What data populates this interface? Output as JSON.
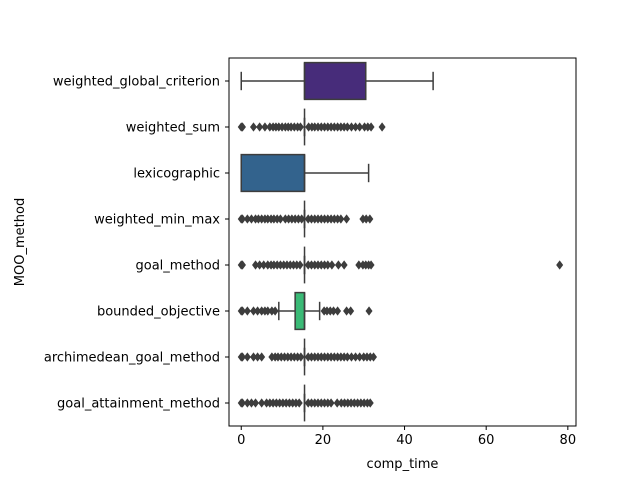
{
  "chart_data": {
    "type": "boxplot",
    "orientation": "horizontal",
    "title": "",
    "xlabel": "comp_time",
    "ylabel": "MOO_method",
    "xlim": [
      -3,
      82
    ],
    "xticks": [
      0,
      20,
      40,
      60,
      80
    ],
    "grid": false,
    "legend": "none",
    "categories": [
      "weighted_global_criterion",
      "weighted_sum",
      "lexicographic",
      "weighted_min_max",
      "goal_method",
      "bounded_objective",
      "archimedean_goal_method",
      "goal_attainment_method"
    ],
    "series": [
      {
        "category": "weighted_global_criterion",
        "color": "#472c7a",
        "whisker_low": 0,
        "q1": 15.5,
        "median": 15.5,
        "q3": 30.5,
        "whisker_high": 47,
        "outliers": []
      },
      {
        "category": "weighted_sum",
        "color": "#3b528b",
        "whisker_low": 15.5,
        "q1": 15.5,
        "median": 15.5,
        "q3": 15.5,
        "whisker_high": 15.5,
        "outliers": [
          0,
          0.3,
          3,
          4.5,
          5.8,
          7,
          7.8,
          8.5,
          9.2,
          10,
          10.8,
          11.5,
          12.2,
          13,
          13.8,
          14.5,
          16.5,
          17.3,
          18,
          18.8,
          19.6,
          20.4,
          21.2,
          22,
          22.8,
          23.6,
          24.4,
          25.2,
          26,
          27,
          28,
          29,
          30.2,
          31,
          31.8,
          34.5
        ]
      },
      {
        "category": "lexicographic",
        "color": "#33638d",
        "whisker_low": 0,
        "q1": 0,
        "median": 15.5,
        "q3": 15.5,
        "whisker_high": 31.2,
        "outliers": []
      },
      {
        "category": "weighted_min_max",
        "color": "#2c728e",
        "whisker_low": 15.5,
        "q1": 15.5,
        "median": 15.5,
        "q3": 15.5,
        "whisker_high": 15.5,
        "outliers": [
          0,
          0.3,
          1.5,
          2.5,
          3.5,
          4.2,
          5,
          5.8,
          6.5,
          7.3,
          8,
          8.8,
          9.6,
          10.8,
          11.6,
          12.4,
          13.2,
          14,
          14.8,
          16.4,
          17.2,
          18,
          18.8,
          19.6,
          20.4,
          21.2,
          22,
          22.8,
          23.6,
          24.4,
          25.8,
          29.8,
          30.6,
          31.5
        ]
      },
      {
        "category": "goal_method",
        "color": "#21908d",
        "whisker_low": 15.5,
        "q1": 15.5,
        "median": 15.5,
        "q3": 15.5,
        "whisker_high": 15.5,
        "outliers": [
          0,
          0.3,
          3.5,
          4.5,
          5.5,
          6.5,
          7.3,
          8,
          8.8,
          9.6,
          10.4,
          11.2,
          12,
          12.8,
          13.6,
          14.4,
          16.4,
          17.2,
          18,
          18.8,
          19.6,
          20.4,
          21.2,
          22.2,
          23.8,
          25.2,
          28.8,
          29.8,
          30.5,
          31.2,
          31.8,
          78
        ]
      },
      {
        "category": "bounded_objective",
        "color": "#3aba76",
        "whisker_low": 9.2,
        "q1": 13.2,
        "median": 15.5,
        "q3": 15.5,
        "whisker_high": 19.2,
        "outliers": [
          0,
          0.3,
          1.5,
          3,
          4,
          5,
          5.8,
          6.5,
          7.5,
          8.3,
          20.3,
          21,
          21.8,
          22.6,
          23.6,
          25.8,
          26.8,
          31.3
        ]
      },
      {
        "category": "archimedean_goal_method",
        "color": "#5ec962",
        "whisker_low": 15.5,
        "q1": 15.5,
        "median": 15.5,
        "q3": 15.5,
        "whisker_high": 15.5,
        "outliers": [
          0,
          0.3,
          1.5,
          3,
          4,
          5,
          7.5,
          8.3,
          9,
          9.8,
          10.6,
          11.4,
          12.2,
          13,
          13.8,
          14.6,
          16.4,
          17.2,
          18,
          18.8,
          19.6,
          20.4,
          21.2,
          22,
          22.8,
          23.6,
          24.4,
          25.2,
          26,
          27,
          28,
          29,
          30,
          30.8,
          31.6,
          32.4
        ]
      },
      {
        "category": "goal_attainment_method",
        "color": "#90d743",
        "whisker_low": 15.5,
        "q1": 15.5,
        "median": 15.5,
        "q3": 15.5,
        "whisker_high": 15.5,
        "outliers": [
          0,
          0.3,
          1.5,
          2.5,
          3.5,
          5,
          6.2,
          7,
          7.8,
          8.6,
          9.4,
          10.2,
          11,
          11.8,
          12.6,
          13.4,
          14.2,
          16.4,
          17.2,
          18,
          18.8,
          19.6,
          20.4,
          21.2,
          22,
          23.5,
          24.5,
          25.3,
          26.1,
          26.9,
          27.7,
          28.5,
          29.3,
          30.1,
          30.9,
          31.6
        ]
      }
    ]
  }
}
